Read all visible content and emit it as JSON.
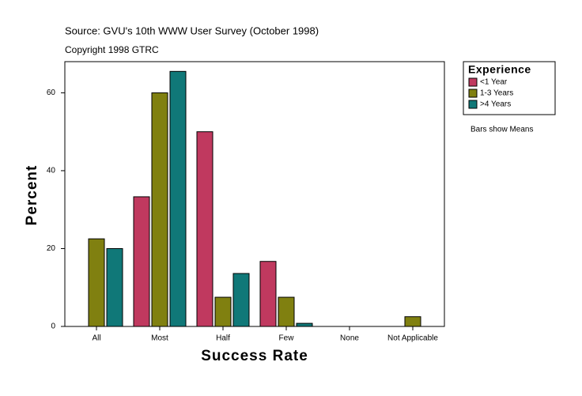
{
  "chart_data": {
    "type": "bar",
    "subtitle": "Source: GVU's 10th WWW User Survey (October 1998)",
    "copyright": "Copyright 1998 GTRC",
    "x_label": "Success Rate",
    "y_label": "Percent",
    "legend_title": "Experience",
    "legend_position": "right",
    "annotation": "Bars show Means",
    "categories": [
      "All",
      "Most",
      "Half",
      "Few",
      "None",
      "Not Applicable"
    ],
    "series": [
      {
        "name": "<1 Year",
        "color": "#c0395f",
        "values": [
          null,
          33.3,
          50,
          16.7,
          null,
          null
        ]
      },
      {
        "name": "1-3 Years",
        "color": "#808010",
        "values": [
          22.5,
          60,
          7.5,
          7.5,
          null,
          2.5
        ]
      },
      {
        "name": ">4 Years",
        "color": "#107878",
        "values": [
          20,
          65.5,
          13.6,
          0.8,
          null,
          null
        ]
      }
    ],
    "ylim": [
      0,
      68
    ],
    "yticks": [
      0,
      20,
      40,
      60
    ],
    "grid": false
  }
}
